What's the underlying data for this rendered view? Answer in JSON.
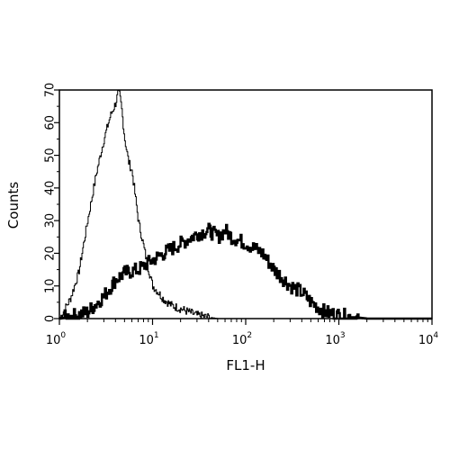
{
  "chart_data": {
    "type": "line",
    "xlabel": "FL1-H",
    "ylabel": "Counts",
    "xscale": "log",
    "xlim": [
      1,
      10000
    ],
    "ylim": [
      0,
      70
    ],
    "x_ticks": [
      {
        "base": "10",
        "exp": "0"
      },
      {
        "base": "10",
        "exp": "1"
      },
      {
        "base": "10",
        "exp": "2"
      },
      {
        "base": "10",
        "exp": "3"
      },
      {
        "base": "10",
        "exp": "4"
      }
    ],
    "y_ticks": [
      "0",
      "10",
      "20",
      "30",
      "40",
      "50",
      "60",
      "70"
    ],
    "grid": false,
    "legend": "none",
    "series": [
      {
        "style": "thin",
        "color": "#000000",
        "x": [
          1.0,
          1.3,
          1.6,
          2.0,
          2.5,
          3.0,
          3.5,
          4.0,
          4.3,
          4.6,
          5.0,
          5.5,
          6.0,
          7.0,
          8.0,
          9.0,
          10.0,
          11.5,
          13.0,
          16.0,
          20.0,
          30.0,
          50.0,
          100.0,
          1000.0
        ],
        "y": [
          0,
          6,
          14,
          30,
          45,
          55,
          62,
          66,
          70,
          65,
          55,
          48,
          45,
          30,
          22,
          15,
          10,
          8,
          6,
          4,
          3,
          1,
          0,
          0,
          0
        ]
      },
      {
        "style": "thick",
        "color": "#000000",
        "x": [
          1.0,
          1.5,
          2.0,
          3.0,
          4.0,
          5.0,
          7.0,
          10.0,
          15.0,
          20.0,
          30.0,
          40.0,
          50.0,
          60.0,
          70.0,
          100.0,
          150.0,
          200.0,
          300.0,
          400.0,
          500.0,
          700.0,
          1000.0,
          2000.0,
          10000.0
        ],
        "y": [
          0,
          1,
          2,
          7,
          12,
          14,
          15,
          18,
          21,
          23,
          26,
          27,
          25,
          27,
          25,
          23,
          20,
          15,
          10,
          8,
          5,
          2,
          1,
          0,
          0
        ]
      }
    ]
  }
}
